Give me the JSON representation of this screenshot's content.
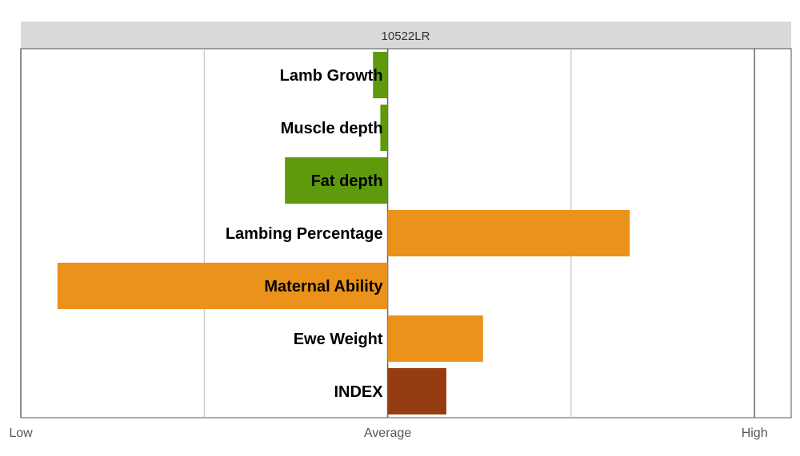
{
  "chart_data": {
    "type": "bar",
    "orientation": "horizontal",
    "title": "10522LR",
    "categories": [
      "Lamb Growth",
      "Muscle depth",
      "Fat depth",
      "Lambing Percentage",
      "Maternal Ability",
      "Ewe Weight",
      "INDEX"
    ],
    "values": [
      -0.04,
      -0.02,
      -0.28,
      0.66,
      -0.9,
      0.26,
      0.16
    ],
    "colors": [
      "#5f9a0c",
      "#5f9a0c",
      "#5f9a0c",
      "#ea921a",
      "#ea921a",
      "#ea921a",
      "#963c12"
    ],
    "xlim": [
      -1,
      1.1
    ],
    "x_ticks": [
      -1,
      0,
      1
    ],
    "x_tick_labels": [
      "Low",
      "Average",
      "High"
    ],
    "grid": true
  }
}
